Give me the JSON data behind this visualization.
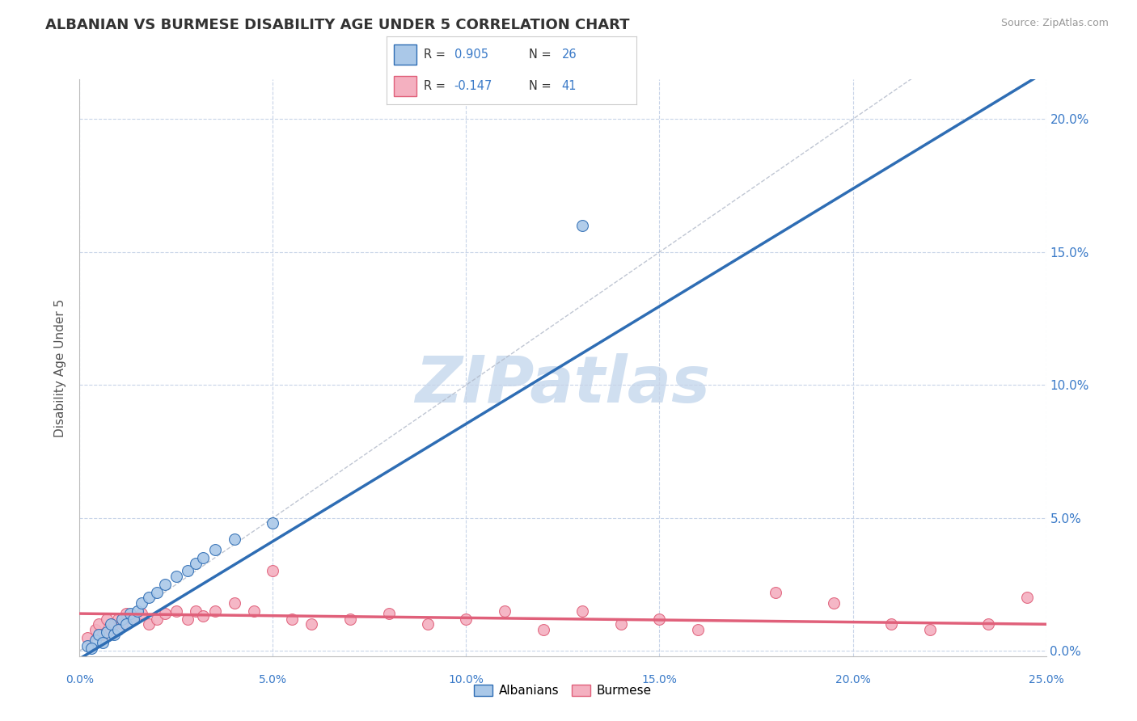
{
  "title": "ALBANIAN VS BURMESE DISABILITY AGE UNDER 5 CORRELATION CHART",
  "source": "Source: ZipAtlas.com",
  "ylabel": "Disability Age Under 5",
  "xlim": [
    0.0,
    0.25
  ],
  "ylim": [
    -0.002,
    0.215
  ],
  "ytick_values": [
    0.0,
    0.05,
    0.1,
    0.15,
    0.2
  ],
  "xtick_values": [
    0.0,
    0.05,
    0.1,
    0.15,
    0.2,
    0.25
  ],
  "albanian_R": 0.905,
  "albanian_N": 26,
  "burmese_R": -0.147,
  "burmese_N": 41,
  "albanian_color": "#aac8e8",
  "albanian_line_color": "#2e6db4",
  "burmese_color": "#f4b0c0",
  "burmese_line_color": "#e0607a",
  "legend_label_1": "Albanians",
  "legend_label_2": "Burmese",
  "albanian_points_x": [
    0.002,
    0.004,
    0.005,
    0.006,
    0.007,
    0.008,
    0.009,
    0.01,
    0.011,
    0.012,
    0.013,
    0.014,
    0.015,
    0.016,
    0.018,
    0.02,
    0.022,
    0.025,
    0.028,
    0.03,
    0.032,
    0.035,
    0.04,
    0.003,
    0.05,
    0.13
  ],
  "albanian_points_y": [
    0.002,
    0.004,
    0.006,
    0.003,
    0.007,
    0.01,
    0.006,
    0.008,
    0.012,
    0.01,
    0.014,
    0.012,
    0.015,
    0.018,
    0.02,
    0.022,
    0.025,
    0.028,
    0.03,
    0.033,
    0.035,
    0.038,
    0.042,
    0.001,
    0.048,
    0.16
  ],
  "burmese_points_x": [
    0.002,
    0.004,
    0.005,
    0.006,
    0.007,
    0.008,
    0.009,
    0.01,
    0.011,
    0.012,
    0.014,
    0.016,
    0.018,
    0.02,
    0.022,
    0.025,
    0.028,
    0.03,
    0.032,
    0.035,
    0.04,
    0.045,
    0.05,
    0.055,
    0.06,
    0.07,
    0.08,
    0.09,
    0.1,
    0.11,
    0.12,
    0.13,
    0.14,
    0.15,
    0.16,
    0.18,
    0.195,
    0.21,
    0.22,
    0.235,
    0.245
  ],
  "burmese_points_y": [
    0.005,
    0.008,
    0.01,
    0.006,
    0.012,
    0.008,
    0.01,
    0.012,
    0.01,
    0.014,
    0.012,
    0.014,
    0.01,
    0.012,
    0.014,
    0.015,
    0.012,
    0.015,
    0.013,
    0.015,
    0.018,
    0.015,
    0.03,
    0.012,
    0.01,
    0.012,
    0.014,
    0.01,
    0.012,
    0.015,
    0.008,
    0.015,
    0.01,
    0.012,
    0.008,
    0.022,
    0.018,
    0.01,
    0.008,
    0.01,
    0.02
  ],
  "albanian_trend_x0": 0.0,
  "albanian_trend_y0": -0.003,
  "albanian_trend_x1": 0.25,
  "albanian_trend_y1": 0.218,
  "burmese_trend_x0": 0.0,
  "burmese_trend_y0": 0.014,
  "burmese_trend_x1": 0.25,
  "burmese_trend_y1": 0.01,
  "background_color": "#ffffff",
  "grid_color": "#c8d4e8",
  "title_color": "#333333",
  "axis_label_color": "#3a7ac8",
  "watermark_color": "#d0dff0",
  "watermark_text": "ZIPatlas"
}
